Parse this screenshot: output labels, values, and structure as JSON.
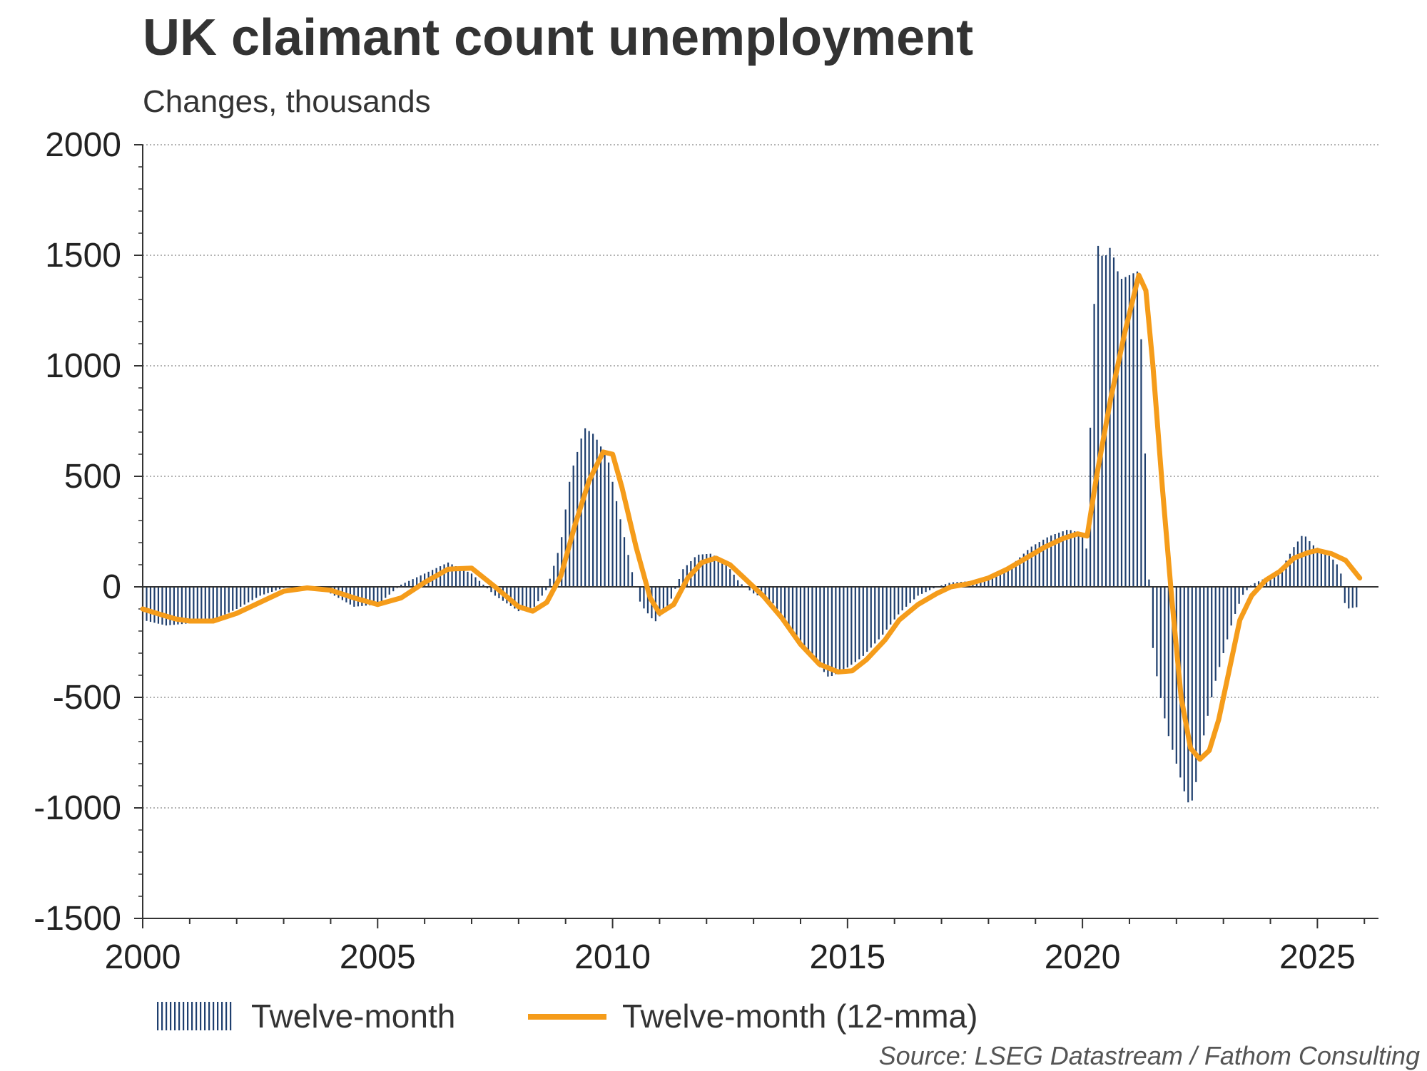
{
  "title": "UK claimant count unemployment",
  "subtitle": "Changes, thousands",
  "source": "Source: LSEG Datastream / Fathom Consulting",
  "colors": {
    "bars": "#1f3f6e",
    "line": "#f59c1a",
    "grid": "#9a9a9a",
    "axis": "#333333"
  },
  "chart_data": {
    "type": "bar",
    "ylim": [
      -1500,
      2000
    ],
    "yticks": [
      "2000",
      "1500",
      "1000",
      "500",
      "0",
      "-500",
      "-1000",
      "-1500"
    ],
    "ytick_values": [
      2000,
      1500,
      1000,
      500,
      0,
      -500,
      -1000,
      -1500
    ],
    "xlim": [
      2000,
      2026.3
    ],
    "xticks": [
      "2000",
      "2005",
      "2010",
      "2015",
      "2020",
      "2025"
    ],
    "xtick_values": [
      2000,
      2005,
      2010,
      2015,
      2020,
      2025
    ],
    "grid": "horizontal dotted",
    "legend_position": "bottom",
    "series": [
      {
        "name": "Twelve-month",
        "style": "bars",
        "anchors": [
          [
            2000.0,
            -150
          ],
          [
            2000.5,
            -175
          ],
          [
            2001.0,
            -165
          ],
          [
            2001.5,
            -150
          ],
          [
            2002.0,
            -100
          ],
          [
            2002.5,
            -40
          ],
          [
            2003.0,
            -5
          ],
          [
            2003.5,
            5
          ],
          [
            2004.0,
            -30
          ],
          [
            2004.5,
            -90
          ],
          [
            2005.0,
            -80
          ],
          [
            2005.5,
            10
          ],
          [
            2006.0,
            60
          ],
          [
            2006.5,
            110
          ],
          [
            2007.0,
            60
          ],
          [
            2007.5,
            -40
          ],
          [
            2008.0,
            -110
          ],
          [
            2008.3,
            -100
          ],
          [
            2008.6,
            -10
          ],
          [
            2008.9,
            200
          ],
          [
            2009.1,
            500
          ],
          [
            2009.4,
            720
          ],
          [
            2009.6,
            690
          ],
          [
            2009.9,
            580
          ],
          [
            2010.1,
            370
          ],
          [
            2010.4,
            80
          ],
          [
            2010.6,
            -80
          ],
          [
            2010.9,
            -160
          ],
          [
            2011.2,
            -80
          ],
          [
            2011.5,
            80
          ],
          [
            2011.8,
            145
          ],
          [
            2012.1,
            150
          ],
          [
            2012.4,
            110
          ],
          [
            2012.7,
            20
          ],
          [
            2013.0,
            -30
          ],
          [
            2013.4,
            -70
          ],
          [
            2013.8,
            -190
          ],
          [
            2014.2,
            -310
          ],
          [
            2014.6,
            -410
          ],
          [
            2014.9,
            -380
          ],
          [
            2015.3,
            -320
          ],
          [
            2015.7,
            -230
          ],
          [
            2016.1,
            -120
          ],
          [
            2016.5,
            -40
          ],
          [
            2016.9,
            0
          ],
          [
            2017.2,
            20
          ],
          [
            2017.6,
            25
          ],
          [
            2018.0,
            50
          ],
          [
            2018.5,
            100
          ],
          [
            2018.9,
            180
          ],
          [
            2019.3,
            230
          ],
          [
            2019.7,
            260
          ],
          [
            2020.0,
            240
          ],
          [
            2020.1,
            160
          ],
          [
            2020.2,
            1000
          ],
          [
            2020.3,
            1560
          ],
          [
            2020.45,
            1480
          ],
          [
            2020.6,
            1540
          ],
          [
            2020.8,
            1390
          ],
          [
            2021.0,
            1410
          ],
          [
            2021.2,
            1430
          ],
          [
            2021.35,
            500
          ],
          [
            2021.45,
            -200
          ],
          [
            2021.6,
            -430
          ],
          [
            2021.8,
            -650
          ],
          [
            2022.0,
            -800
          ],
          [
            2022.2,
            -950
          ],
          [
            2022.3,
            -1000
          ],
          [
            2022.45,
            -850
          ],
          [
            2022.6,
            -650
          ],
          [
            2022.8,
            -450
          ],
          [
            2023.0,
            -300
          ],
          [
            2023.2,
            -150
          ],
          [
            2023.4,
            -40
          ],
          [
            2023.6,
            10
          ],
          [
            2023.9,
            40
          ],
          [
            2024.2,
            70
          ],
          [
            2024.5,
            180
          ],
          [
            2024.7,
            240
          ],
          [
            2024.9,
            190
          ],
          [
            2025.2,
            150
          ],
          [
            2025.4,
            110
          ],
          [
            2025.5,
            60
          ],
          [
            2025.6,
            -100
          ],
          [
            2025.9,
            -90
          ]
        ]
      },
      {
        "name": "Twelve-month (12-mma)",
        "style": "line",
        "points": [
          [
            2000.0,
            -100
          ],
          [
            2000.3,
            -120
          ],
          [
            2000.7,
            -145
          ],
          [
            2001.0,
            -155
          ],
          [
            2001.5,
            -155
          ],
          [
            2002.0,
            -120
          ],
          [
            2002.5,
            -70
          ],
          [
            2003.0,
            -20
          ],
          [
            2003.5,
            -5
          ],
          [
            2004.0,
            -15
          ],
          [
            2004.5,
            -50
          ],
          [
            2005.0,
            -80
          ],
          [
            2005.5,
            -50
          ],
          [
            2006.0,
            20
          ],
          [
            2006.5,
            80
          ],
          [
            2007.0,
            85
          ],
          [
            2007.5,
            0
          ],
          [
            2008.0,
            -90
          ],
          [
            2008.3,
            -110
          ],
          [
            2008.6,
            -70
          ],
          [
            2008.9,
            50
          ],
          [
            2009.2,
            280
          ],
          [
            2009.5,
            480
          ],
          [
            2009.8,
            610
          ],
          [
            2010.0,
            600
          ],
          [
            2010.2,
            450
          ],
          [
            2010.5,
            180
          ],
          [
            2010.8,
            -50
          ],
          [
            2011.0,
            -120
          ],
          [
            2011.3,
            -80
          ],
          [
            2011.6,
            40
          ],
          [
            2011.9,
            110
          ],
          [
            2012.2,
            130
          ],
          [
            2012.5,
            100
          ],
          [
            2012.8,
            40
          ],
          [
            2013.2,
            -40
          ],
          [
            2013.6,
            -140
          ],
          [
            2014.0,
            -260
          ],
          [
            2014.4,
            -350
          ],
          [
            2014.8,
            -385
          ],
          [
            2015.1,
            -380
          ],
          [
            2015.4,
            -330
          ],
          [
            2015.8,
            -240
          ],
          [
            2016.1,
            -150
          ],
          [
            2016.5,
            -80
          ],
          [
            2016.9,
            -30
          ],
          [
            2017.2,
            0
          ],
          [
            2017.6,
            15
          ],
          [
            2018.0,
            40
          ],
          [
            2018.4,
            80
          ],
          [
            2018.8,
            130
          ],
          [
            2019.2,
            180
          ],
          [
            2019.6,
            220
          ],
          [
            2019.9,
            240
          ],
          [
            2020.1,
            230
          ],
          [
            2020.3,
            500
          ],
          [
            2020.6,
            850
          ],
          [
            2020.9,
            1150
          ],
          [
            2021.2,
            1410
          ],
          [
            2021.35,
            1340
          ],
          [
            2021.5,
            1000
          ],
          [
            2021.7,
            450
          ],
          [
            2021.9,
            -50
          ],
          [
            2022.1,
            -500
          ],
          [
            2022.3,
            -730
          ],
          [
            2022.5,
            -780
          ],
          [
            2022.7,
            -740
          ],
          [
            2022.9,
            -600
          ],
          [
            2023.1,
            -400
          ],
          [
            2023.35,
            -150
          ],
          [
            2023.6,
            -40
          ],
          [
            2023.9,
            30
          ],
          [
            2024.2,
            70
          ],
          [
            2024.5,
            130
          ],
          [
            2024.8,
            155
          ],
          [
            2025.0,
            165
          ],
          [
            2025.3,
            150
          ],
          [
            2025.6,
            120
          ],
          [
            2025.9,
            40
          ]
        ]
      }
    ]
  }
}
